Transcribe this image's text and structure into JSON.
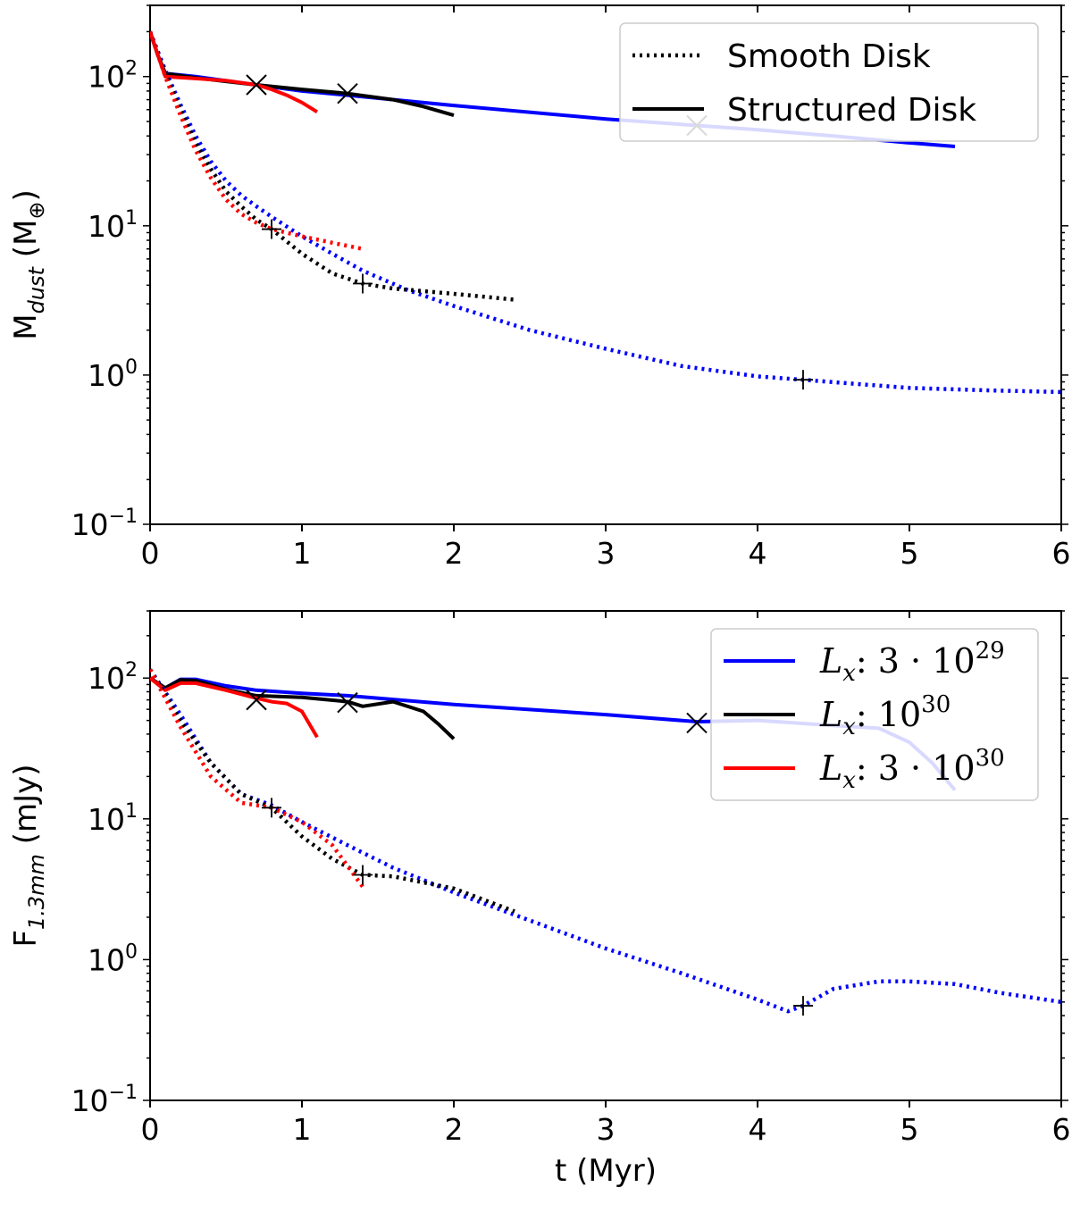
{
  "chart_data": [
    {
      "type": "line",
      "title": "",
      "xlabel": "",
      "ylabel": {
        "base": "M",
        "sub": "dust",
        "unit_prefix": " (M",
        "unit_sub": "⊕",
        "unit_suffix": ")"
      },
      "xlim": [
        0,
        6
      ],
      "ylim": [
        0.1,
        300
      ],
      "yscale": "log",
      "xticks": [
        "0",
        "1",
        "2",
        "3",
        "4",
        "5",
        "6"
      ],
      "yticks": [
        {
          "value": 100,
          "base": "10",
          "exp": "2"
        },
        {
          "value": 10,
          "base": "10",
          "exp": "1"
        },
        {
          "value": 1,
          "base": "10",
          "exp": "0"
        },
        {
          "value": 0.1,
          "base": "10",
          "exp": "−1"
        }
      ],
      "legend": {
        "position": "top-right",
        "entries": [
          {
            "label": "Smooth Disk",
            "style": "dotted",
            "color": "#000000"
          },
          {
            "label": "Structured Disk",
            "style": "solid",
            "color": "#000000"
          }
        ]
      },
      "series": [
        {
          "color": "#0000ff",
          "style": "solid",
          "x": [
            0,
            0.05,
            0.1,
            0.3,
            0.7,
            1.0,
            1.3,
            2.0,
            3.0,
            3.6,
            4.0,
            4.5,
            5.0,
            5.3
          ],
          "y": [
            200,
            140,
            105,
            100,
            88,
            80,
            75,
            64,
            52,
            47,
            44,
            40,
            36,
            34
          ]
        },
        {
          "color": "#000000",
          "style": "solid",
          "x": [
            0,
            0.05,
            0.1,
            0.3,
            0.7,
            1.0,
            1.3,
            1.6,
            1.8,
            2.0
          ],
          "y": [
            200,
            140,
            105,
            98,
            88,
            82,
            77,
            70,
            63,
            55
          ]
        },
        {
          "color": "#ff0000",
          "style": "solid",
          "x": [
            0,
            0.05,
            0.1,
            0.3,
            0.5,
            0.7,
            0.8,
            0.9,
            1.0,
            1.1
          ],
          "y": [
            200,
            140,
            100,
            97,
            94,
            88,
            82,
            75,
            67,
            58
          ]
        },
        {
          "color": "#0000ff",
          "style": "dotted",
          "x": [
            0,
            0.1,
            0.2,
            0.3,
            0.4,
            0.5,
            0.6,
            0.7,
            0.8,
            1.0,
            1.2,
            1.4,
            1.7,
            2.0,
            2.5,
            3.0,
            3.5,
            4.0,
            4.3,
            4.6,
            5.0,
            5.5,
            6.0
          ],
          "y": [
            200,
            110,
            65,
            40,
            27,
            20,
            16,
            13.5,
            11.5,
            8.5,
            6.5,
            5.0,
            3.7,
            2.9,
            2.0,
            1.5,
            1.15,
            0.98,
            0.93,
            0.88,
            0.82,
            0.79,
            0.77
          ]
        },
        {
          "color": "#000000",
          "style": "dotted",
          "x": [
            0,
            0.1,
            0.2,
            0.3,
            0.4,
            0.5,
            0.6,
            0.7,
            0.8,
            1.0,
            1.2,
            1.4,
            1.6,
            2.0,
            2.4
          ],
          "y": [
            200,
            105,
            60,
            36,
            24,
            17,
            13.5,
            11,
            9.5,
            6.5,
            4.8,
            4.1,
            3.8,
            3.5,
            3.2
          ]
        },
        {
          "color": "#ff0000",
          "style": "dotted",
          "x": [
            0,
            0.1,
            0.2,
            0.3,
            0.4,
            0.5,
            0.6,
            0.7,
            0.8,
            1.0,
            1.2,
            1.4
          ],
          "y": [
            200,
            100,
            55,
            32,
            21,
            15,
            12,
            10.5,
            9.5,
            8.5,
            7.7,
            7.0
          ]
        }
      ],
      "markers": [
        {
          "symbol": "x",
          "x": 0.7,
          "y": 88
        },
        {
          "symbol": "x",
          "x": 1.3,
          "y": 77
        },
        {
          "symbol": "x",
          "x": 3.6,
          "y": 47
        },
        {
          "symbol": "+",
          "x": 0.8,
          "y": 9.5
        },
        {
          "symbol": "+",
          "x": 1.4,
          "y": 4.1
        },
        {
          "symbol": "+",
          "x": 4.3,
          "y": 0.93
        }
      ]
    },
    {
      "type": "line",
      "title": "",
      "xlabel": "t (Myr)",
      "ylabel": {
        "base": "F",
        "sub": "1.3mm",
        "unit_prefix": " (mJy)",
        "unit_sub": "",
        "unit_suffix": ""
      },
      "xlim": [
        0,
        6
      ],
      "ylim": [
        0.1,
        300
      ],
      "yscale": "log",
      "xticks": [
        "0",
        "1",
        "2",
        "3",
        "4",
        "5",
        "6"
      ],
      "yticks": [
        {
          "value": 100,
          "base": "10",
          "exp": "2"
        },
        {
          "value": 10,
          "base": "10",
          "exp": "1"
        },
        {
          "value": 1,
          "base": "10",
          "exp": "0"
        },
        {
          "value": 0.1,
          "base": "10",
          "exp": "−1"
        }
      ],
      "legend": {
        "position": "top-right",
        "entries": [
          {
            "prefix": "L",
            "sub": "x",
            "mid": ": 3 · 10",
            "exp": "29",
            "color": "#0000ff",
            "style": "solid"
          },
          {
            "prefix": "L",
            "sub": "x",
            "mid": ": 10",
            "exp": "30",
            "color": "#000000",
            "style": "solid"
          },
          {
            "prefix": "L",
            "sub": "x",
            "mid": ": 3 · 10",
            "exp": "30",
            "color": "#ff0000",
            "style": "solid"
          }
        ]
      },
      "series": [
        {
          "color": "#0000ff",
          "style": "solid",
          "x": [
            0,
            0.1,
            0.2,
            0.3,
            0.5,
            0.7,
            1.0,
            1.3,
            2.0,
            3.0,
            3.6,
            4.0,
            4.5,
            4.8,
            5.0,
            5.15,
            5.3
          ],
          "y": [
            100,
            85,
            98,
            98,
            88,
            82,
            78,
            75,
            65,
            55,
            49,
            50,
            46,
            44,
            35,
            25,
            16
          ]
        },
        {
          "color": "#000000",
          "style": "solid",
          "x": [
            0,
            0.1,
            0.2,
            0.3,
            0.5,
            0.7,
            1.0,
            1.3,
            1.4,
            1.6,
            1.8,
            1.9,
            2.0
          ],
          "y": [
            100,
            85,
            97,
            96,
            83,
            75,
            73,
            68,
            63,
            68,
            58,
            47,
            37
          ]
        },
        {
          "color": "#ff0000",
          "style": "solid",
          "x": [
            0,
            0.1,
            0.2,
            0.3,
            0.5,
            0.7,
            0.8,
            0.9,
            1.0,
            1.1
          ],
          "y": [
            100,
            82,
            92,
            92,
            82,
            72,
            68,
            66,
            58,
            38
          ]
        },
        {
          "color": "#0000ff",
          "style": "dotted",
          "x": [
            0,
            0.2,
            0.4,
            0.6,
            0.8,
            1.0,
            1.3,
            1.6,
            2.0,
            2.5,
            3.0,
            3.5,
            4.0,
            4.2,
            4.3,
            4.5,
            4.8,
            5.0,
            5.3,
            5.6,
            6.0
          ],
          "y": [
            115,
            55,
            25,
            15,
            12.5,
            9.5,
            6.5,
            4.5,
            3.0,
            1.9,
            1.2,
            0.8,
            0.52,
            0.43,
            0.47,
            0.62,
            0.7,
            0.7,
            0.67,
            0.58,
            0.5
          ]
        },
        {
          "color": "#000000",
          "style": "dotted",
          "x": [
            0,
            0.2,
            0.4,
            0.6,
            0.8,
            1.0,
            1.2,
            1.4,
            1.6,
            2.0,
            2.4
          ],
          "y": [
            115,
            50,
            25,
            15,
            12,
            7.5,
            5.2,
            4.0,
            3.9,
            3.2,
            2.2
          ]
        },
        {
          "color": "#ff0000",
          "style": "dotted",
          "x": [
            0,
            0.2,
            0.4,
            0.6,
            0.8,
            1.0,
            1.2,
            1.4
          ],
          "y": [
            115,
            45,
            20,
            13,
            12,
            9.5,
            6.5,
            3.3
          ]
        }
      ],
      "markers": [
        {
          "symbol": "x",
          "x": 0.7,
          "y": 70
        },
        {
          "symbol": "x",
          "x": 1.3,
          "y": 67
        },
        {
          "symbol": "x",
          "x": 3.6,
          "y": 48
        },
        {
          "symbol": "+",
          "x": 0.8,
          "y": 12
        },
        {
          "symbol": "+",
          "x": 1.4,
          "y": 4.0
        },
        {
          "symbol": "+",
          "x": 4.3,
          "y": 0.47
        }
      ]
    }
  ]
}
